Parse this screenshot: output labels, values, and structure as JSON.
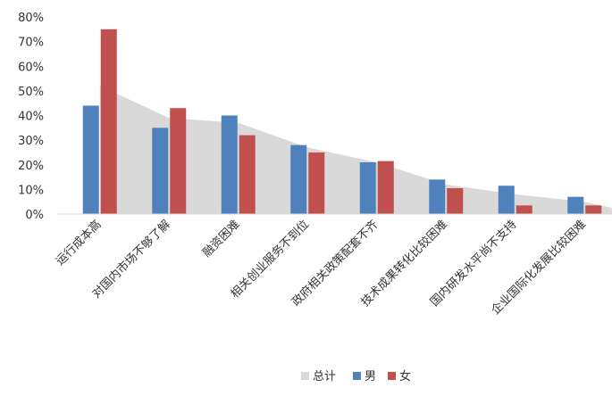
{
  "chart_data": {
    "type": "bar",
    "categories": [
      "运行成本高",
      "对国内市场不够了解",
      "融资困难",
      "相关创业服务不到位",
      "政府相关政策配套不齐",
      "技术成果转化比较困难",
      "国内研发水平尚不支持",
      "企业国际化发展比较困难"
    ],
    "series": [
      {
        "name": "总计",
        "type": "area",
        "color": "#d9d9d9",
        "values": [
          52,
          39,
          37,
          27,
          21,
          12,
          8,
          5
        ]
      },
      {
        "name": "男",
        "type": "bar",
        "color": "#4f81bd",
        "values": [
          44,
          35,
          40,
          28,
          21,
          14,
          11.5,
          7
        ]
      },
      {
        "name": "女",
        "type": "bar",
        "color": "#c0504d",
        "values": [
          75,
          43,
          32,
          25,
          21.5,
          10.5,
          3.5,
          3.5
        ]
      }
    ],
    "yticks": [
      "0%",
      "10%",
      "20%",
      "30%",
      "40%",
      "50%",
      "60%",
      "70%",
      "80%"
    ],
    "ylim": [
      0,
      80
    ],
    "grid": false,
    "legend": "bottom"
  }
}
